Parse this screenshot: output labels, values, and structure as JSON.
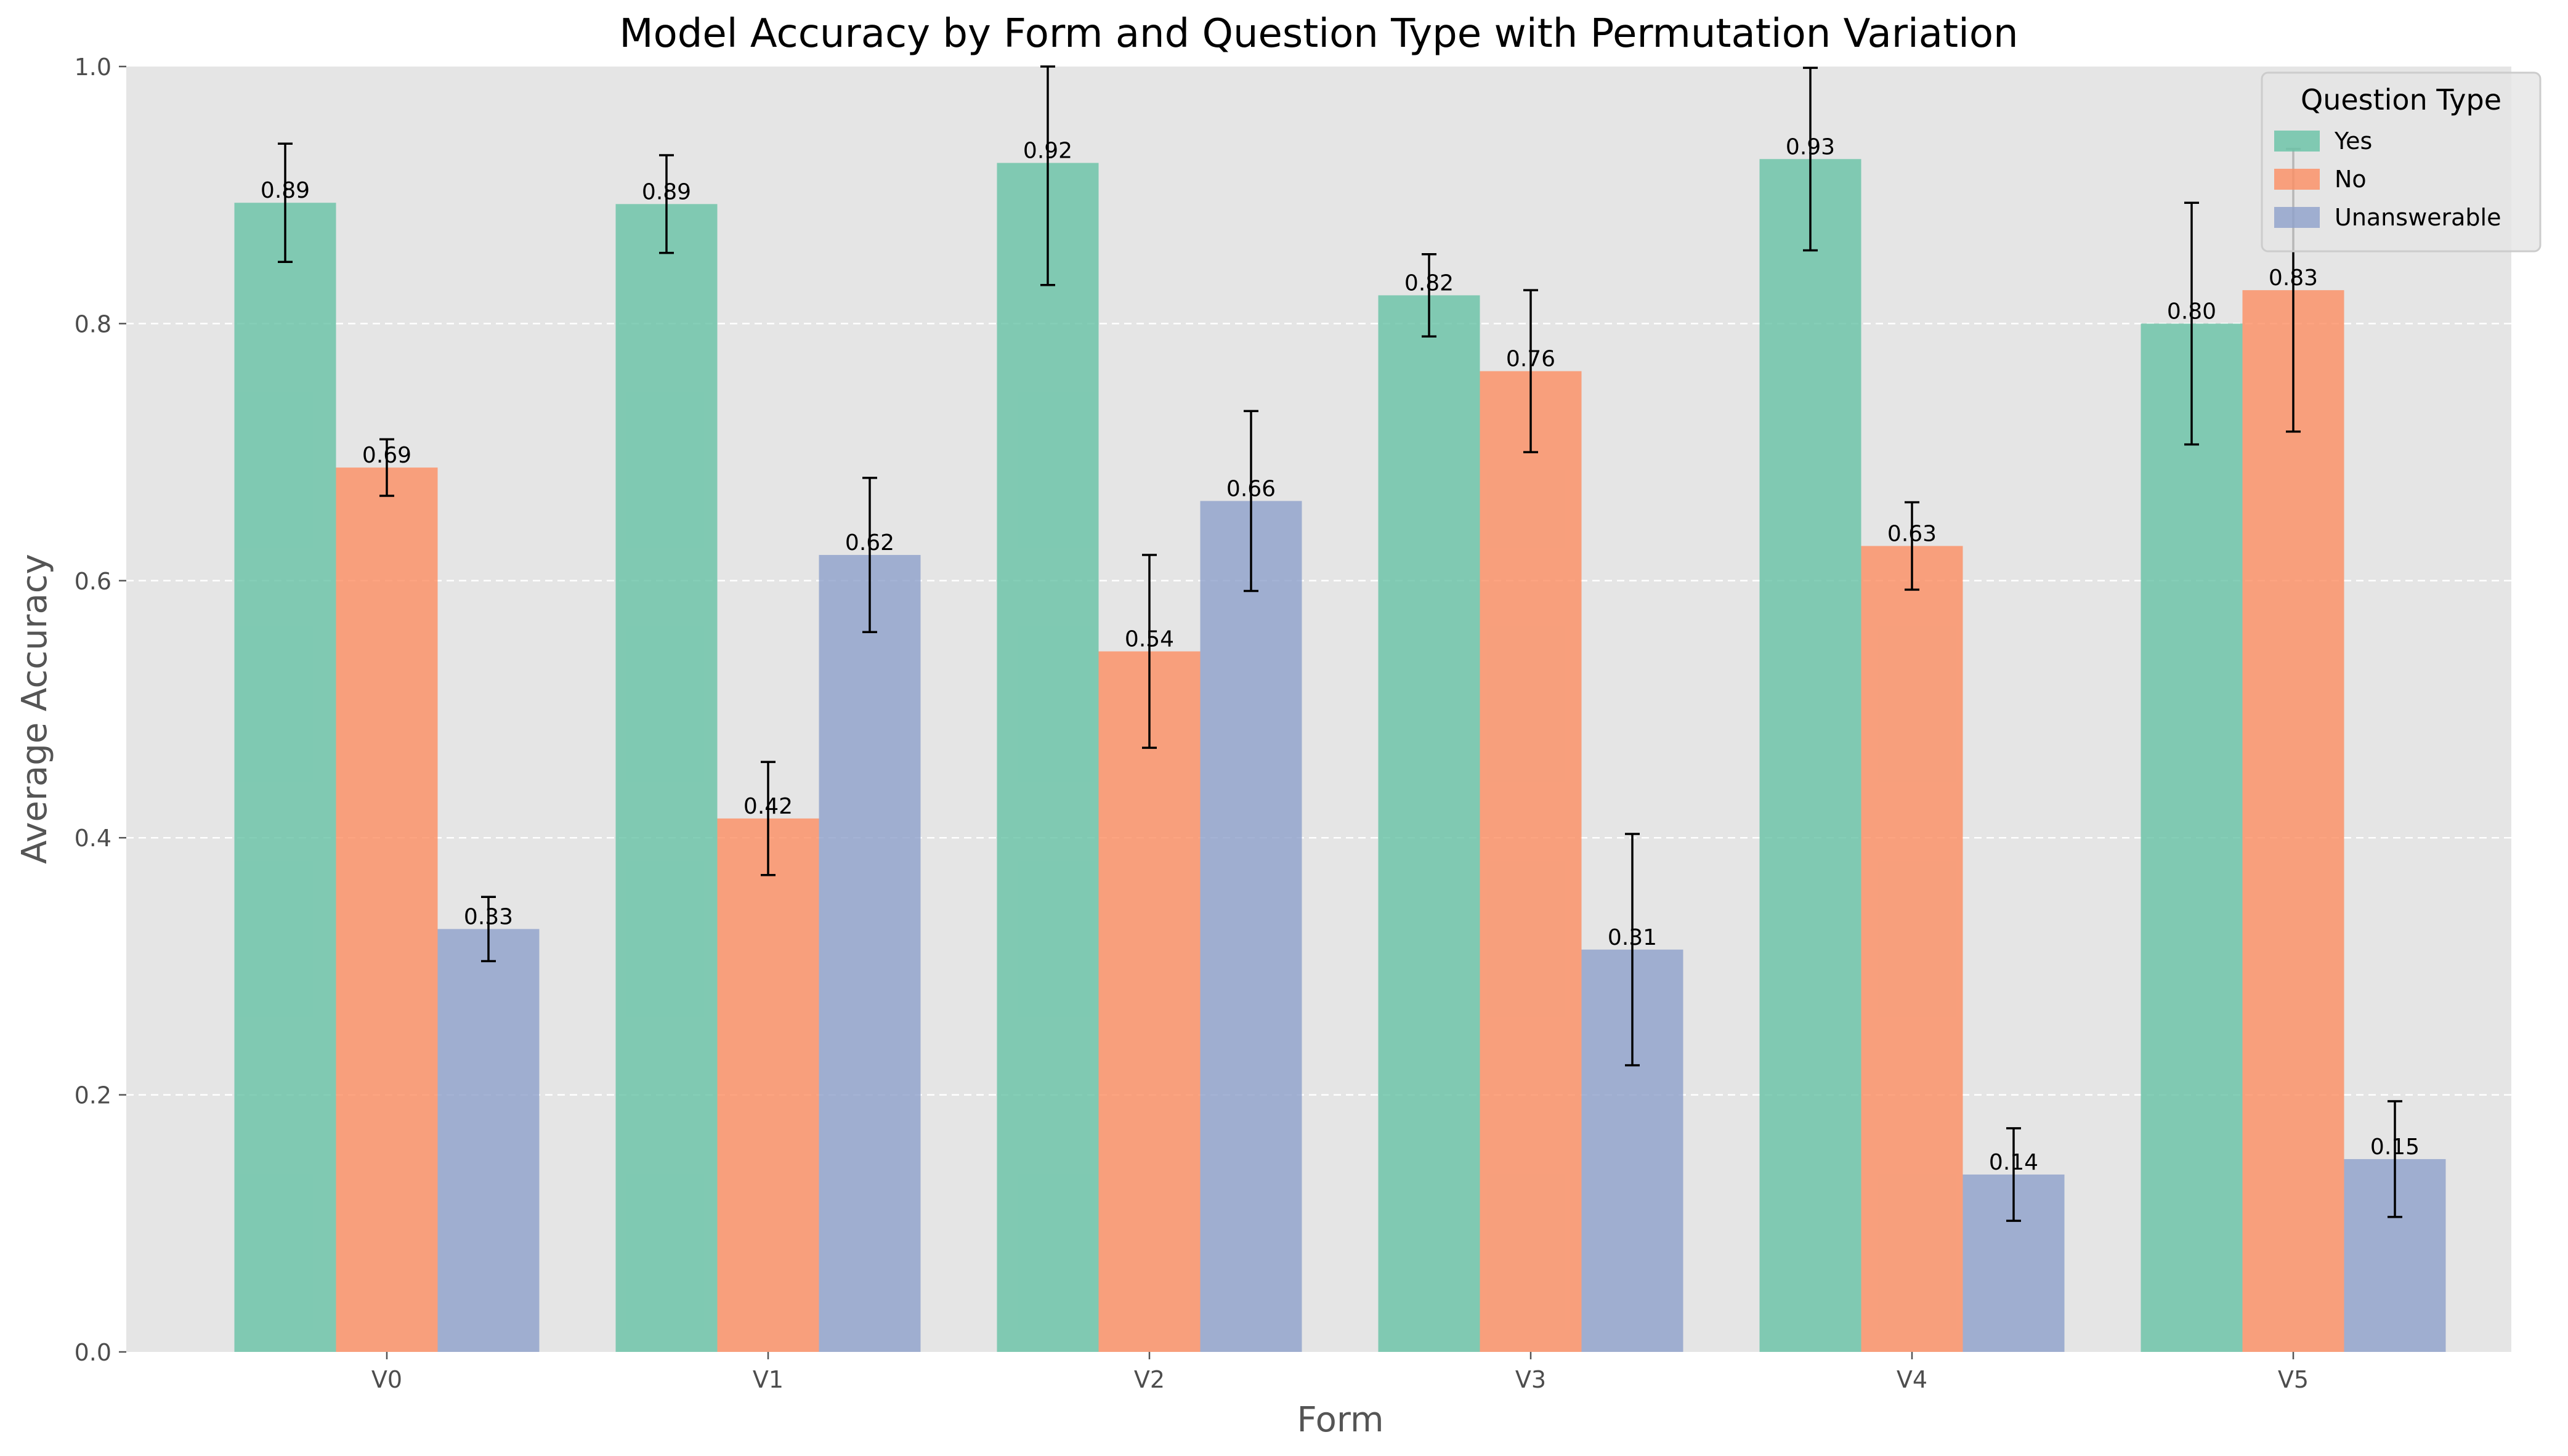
{
  "chart_data": {
    "type": "bar",
    "title": "Model Accuracy by Form and Question Type with Permutation Variation",
    "xlabel": "Form",
    "ylabel": "Average Accuracy",
    "categories": [
      "V0",
      "V1",
      "V2",
      "V3",
      "V4",
      "V5"
    ],
    "ylim": [
      0,
      1.0
    ],
    "yticks": [
      0.0,
      0.2,
      0.4,
      0.6,
      0.8,
      1.0
    ],
    "ytick_labels": [
      "0.0",
      "0.2",
      "0.4",
      "0.6",
      "0.8",
      "1.0"
    ],
    "grid": "y-dashed",
    "legend": {
      "title": "Question Type",
      "placement": "top-right"
    },
    "series": [
      {
        "name": "Yes",
        "color": "#66c2a5",
        "values": [
          0.894,
          0.893,
          0.925,
          0.822,
          0.928,
          0.8
        ],
        "errors": [
          0.046,
          0.038,
          0.095,
          0.032,
          0.071,
          0.094
        ],
        "labels": [
          "0.89",
          "0.89",
          "0.92",
          "0.82",
          "0.93",
          "0.80"
        ]
      },
      {
        "name": "No",
        "color": "#fc8d62",
        "values": [
          0.688,
          0.415,
          0.545,
          0.763,
          0.627,
          0.826
        ],
        "errors": [
          0.022,
          0.044,
          0.075,
          0.063,
          0.034,
          0.11
        ],
        "labels": [
          "0.69",
          "0.42",
          "0.54",
          "0.76",
          "0.63",
          "0.83"
        ]
      },
      {
        "name": "Unanswerable",
        "color": "#8da0cb",
        "values": [
          0.329,
          0.62,
          0.662,
          0.313,
          0.138,
          0.15
        ],
        "errors": [
          0.025,
          0.06,
          0.07,
          0.09,
          0.036,
          0.045
        ],
        "labels": [
          "0.33",
          "0.62",
          "0.66",
          "0.31",
          "0.14",
          "0.15"
        ]
      }
    ]
  }
}
